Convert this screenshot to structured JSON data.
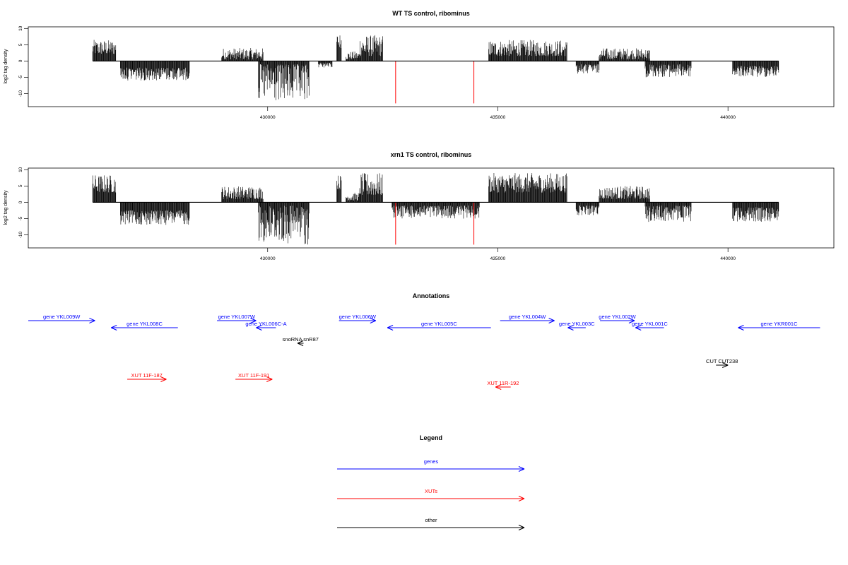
{
  "chart_data": [
    {
      "type": "bar",
      "title": "WT TS control, ribominus",
      "ylabel": "log2 tag density",
      "xlabel": "",
      "ylim": [
        -14,
        10.5
      ],
      "xlim": [
        424800,
        442300
      ],
      "yticks": [
        10,
        5,
        0,
        -5,
        -10
      ],
      "xticks": [
        430000,
        435000,
        440000
      ],
      "grid": false,
      "series": [
        {
          "strand": "plus",
          "color": "#000000",
          "regions": [
            {
              "start": 426200,
              "end": 426700,
              "max": 6.5,
              "min": 2
            },
            {
              "start": 429000,
              "end": 429900,
              "max": 4,
              "min": 0.5
            },
            {
              "start": 431500,
              "end": 431600,
              "max": 8.5,
              "min": 4
            },
            {
              "start": 431700,
              "end": 432000,
              "max": 3,
              "min": 0.5
            },
            {
              "start": 432000,
              "end": 432500,
              "max": 8,
              "min": 1.5
            },
            {
              "start": 434800,
              "end": 436500,
              "max": 6.5,
              "min": 1.5
            },
            {
              "start": 437200,
              "end": 438300,
              "max": 4,
              "min": 0.5
            }
          ]
        },
        {
          "strand": "minus",
          "color": "#000000",
          "regions": [
            {
              "start": 426800,
              "end": 428300,
              "max": 6,
              "min": 2
            },
            {
              "start": 429800,
              "end": 430900,
              "max": 13,
              "min": 1
            },
            {
              "start": 431100,
              "end": 431400,
              "max": 2,
              "min": 0.5
            },
            {
              "start": 436700,
              "end": 437200,
              "max": 4,
              "min": 1
            },
            {
              "start": 438200,
              "end": 439200,
              "max": 5,
              "min": 1
            },
            {
              "start": 440100,
              "end": 441100,
              "max": 5,
              "min": 1.5
            }
          ]
        }
      ],
      "red_markers": [
        {
          "x": 432780,
          "y": -13
        },
        {
          "x": 434480,
          "y": -13
        }
      ]
    },
    {
      "type": "bar",
      "title": "xrn1 TS control, ribominus",
      "ylabel": "log2 tag density",
      "xlabel": "",
      "ylim": [
        -14,
        10.5
      ],
      "xlim": [
        424800,
        442300
      ],
      "yticks": [
        10,
        5,
        0,
        -5,
        -10
      ],
      "xticks": [
        430000,
        435000,
        440000
      ],
      "grid": false,
      "series": [
        {
          "strand": "plus",
          "color": "#000000",
          "regions": [
            {
              "start": 426200,
              "end": 426700,
              "max": 8.5,
              "min": 3
            },
            {
              "start": 429000,
              "end": 429900,
              "max": 5,
              "min": 1
            },
            {
              "start": 431500,
              "end": 431600,
              "max": 8.5,
              "min": 4
            },
            {
              "start": 431700,
              "end": 432000,
              "max": 3,
              "min": 0.5
            },
            {
              "start": 432000,
              "end": 432500,
              "max": 9,
              "min": 2
            },
            {
              "start": 434800,
              "end": 436500,
              "max": 9,
              "min": 3
            },
            {
              "start": 437200,
              "end": 438300,
              "max": 5,
              "min": 1
            }
          ]
        },
        {
          "strand": "minus",
          "color": "#000000",
          "regions": [
            {
              "start": 426800,
              "end": 428300,
              "max": 7,
              "min": 2.5
            },
            {
              "start": 429800,
              "end": 430900,
              "max": 13,
              "min": 1
            },
            {
              "start": 432700,
              "end": 434600,
              "max": 5,
              "min": 1
            },
            {
              "start": 436700,
              "end": 437200,
              "max": 4,
              "min": 1
            },
            {
              "start": 438200,
              "end": 439200,
              "max": 6,
              "min": 1
            },
            {
              "start": 440100,
              "end": 441100,
              "max": 6,
              "min": 1.5
            }
          ]
        }
      ],
      "red_markers": [
        {
          "x": 432780,
          "y": -13
        },
        {
          "x": 434480,
          "y": -13
        }
      ]
    }
  ],
  "annotations": {
    "title": "Annotations",
    "colors": {
      "genes": "#0000ff",
      "XUTs": "#ff0000",
      "other": "#000000"
    },
    "items": [
      {
        "label": "gene YKL009W",
        "category": "genes",
        "strand": "+",
        "start": 424800,
        "end": 426250,
        "row": 0
      },
      {
        "label": "gene YKL008C",
        "category": "genes",
        "strand": "-",
        "start": 426600,
        "end": 428050,
        "row": 1
      },
      {
        "label": "gene YKL007W",
        "category": "genes",
        "strand": "+",
        "start": 428900,
        "end": 429750,
        "row": 0
      },
      {
        "label": "gene YKL006C-A",
        "category": "genes",
        "strand": "-",
        "start": 429750,
        "end": 430180,
        "row": 1
      },
      {
        "label": "gene YKL006W",
        "category": "genes",
        "strand": "+",
        "start": 431550,
        "end": 432350,
        "row": 0
      },
      {
        "label": "gene YKL005C",
        "category": "genes",
        "strand": "-",
        "start": 432600,
        "end": 434850,
        "row": 1
      },
      {
        "label": "gene YKL004W",
        "category": "genes",
        "strand": "+",
        "start": 435050,
        "end": 436230,
        "row": 0
      },
      {
        "label": "gene YKL003C",
        "category": "genes",
        "strand": "-",
        "start": 436520,
        "end": 436910,
        "row": 1
      },
      {
        "label": "gene YKL002W",
        "category": "genes",
        "strand": "+",
        "start": 437220,
        "end": 437970,
        "row": 0
      },
      {
        "label": "gene YKL001C",
        "category": "genes",
        "strand": "-",
        "start": 437990,
        "end": 438610,
        "row": 1
      },
      {
        "label": "gene YKR001C",
        "category": "genes",
        "strand": "-",
        "start": 440220,
        "end": 442000,
        "row": 1
      },
      {
        "label": "snoRNA snR87",
        "category": "other",
        "strand": "-",
        "start": 430650,
        "end": 430780,
        "row": 2
      },
      {
        "label": "CUT CUT238",
        "category": "other",
        "strand": "+",
        "start": 439740,
        "end": 440000,
        "row": 3
      },
      {
        "label": "XUT 11F-187",
        "category": "XUTs",
        "strand": "+",
        "start": 426950,
        "end": 427800,
        "row": 4
      },
      {
        "label": "XUT 11F-191",
        "category": "XUTs",
        "strand": "+",
        "start": 429300,
        "end": 430100,
        "row": 4
      },
      {
        "label": "XUT 11R-192",
        "category": "XUTs",
        "strand": "-",
        "start": 434950,
        "end": 435280,
        "row": 5
      }
    ]
  },
  "legend": {
    "title": "Legend",
    "entries": [
      {
        "label": "genes",
        "color": "#0000ff"
      },
      {
        "label": "XUTs",
        "color": "#ff0000"
      },
      {
        "label": "other",
        "color": "#000000"
      }
    ]
  }
}
